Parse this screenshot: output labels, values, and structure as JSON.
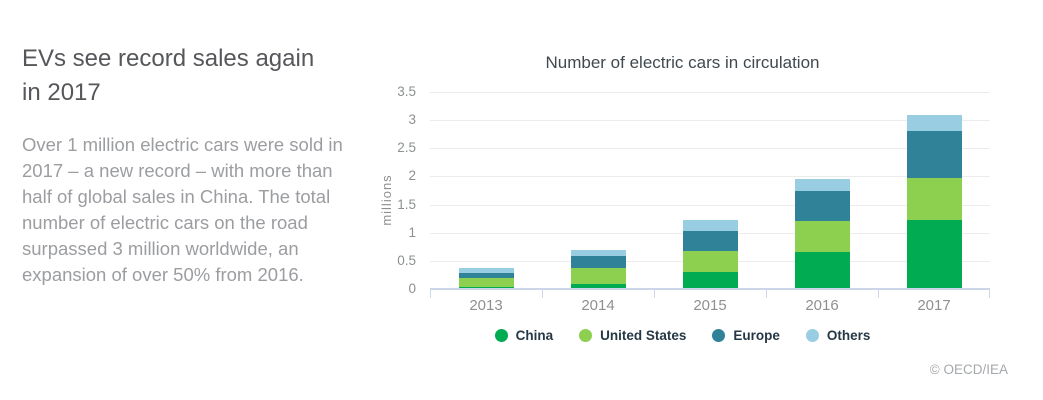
{
  "left_panel": {
    "title_line1": "EVs see record sales again",
    "title_line2": "in 2017",
    "body": "Over 1 million electric cars were sold in 2017 – a new record – with more than half of global sales in China. The total number of electric cars on the road surpassed 3 million worldwide, an expansion of over 50% from 2016."
  },
  "chart": {
    "title": "Number of electric cars in circulation",
    "y_axis_label": "millions",
    "y_ticks": [
      0,
      0.5,
      1,
      1.5,
      2,
      2.5,
      3,
      3.5
    ]
  },
  "chart_data": {
    "type": "bar",
    "stacked": true,
    "title": "Number of electric cars in circulation",
    "categories": [
      "2013",
      "2014",
      "2015",
      "2016",
      "2017"
    ],
    "series": [
      {
        "name": "China",
        "color": "#00ab51",
        "values": [
          0.03,
          0.09,
          0.31,
          0.65,
          1.23
        ]
      },
      {
        "name": "United States",
        "color": "#8dcf4f",
        "values": [
          0.16,
          0.29,
          0.37,
          0.56,
          0.75
        ]
      },
      {
        "name": "Europe",
        "color": "#2f8298",
        "values": [
          0.1,
          0.2,
          0.36,
          0.53,
          0.82
        ]
      },
      {
        "name": "Others",
        "color": "#98cde2",
        "values": [
          0.08,
          0.12,
          0.18,
          0.22,
          0.3
        ]
      }
    ],
    "totals": [
      0.37,
      0.7,
      1.22,
      1.96,
      3.1
    ],
    "xlabel": "",
    "ylabel": "millions",
    "ylim": [
      0,
      3.5
    ],
    "grid": true,
    "legend_position": "bottom",
    "colors": {
      "gridline": "#ececec",
      "axis_line": "#ccd6e9",
      "axis_text": "#8d9092",
      "legend_text": "#253845"
    }
  },
  "footer": {
    "copyright": "© OECD/IEA"
  }
}
